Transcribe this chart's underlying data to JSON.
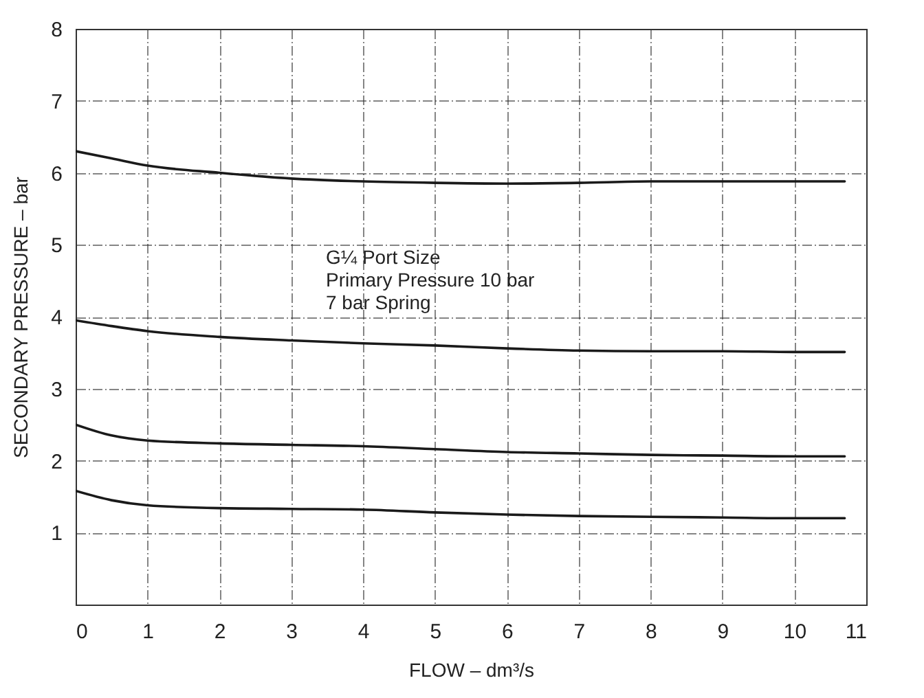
{
  "chart_data": {
    "type": "line",
    "xlabel": "FLOW – dm³/s",
    "ylabel": "SECONDARY PRESSURE – bar",
    "annotations": [
      "G¼ Port Size",
      "Primary Pressure 10 bar",
      "7 bar Spring"
    ],
    "x": [
      0,
      0.5,
      1,
      2,
      3,
      4,
      5,
      6,
      7,
      8,
      9,
      10,
      10.7
    ],
    "series": [
      {
        "color": "#1a1a1a",
        "values": [
          6.3,
          6.2,
          6.1,
          6.0,
          5.92,
          5.88,
          5.86,
          5.85,
          5.86,
          5.88,
          5.88,
          5.88,
          5.88
        ]
      },
      {
        "color": "#1a1a1a",
        "values": [
          3.95,
          3.87,
          3.8,
          3.72,
          3.67,
          3.63,
          3.6,
          3.56,
          3.53,
          3.52,
          3.52,
          3.51,
          3.51
        ]
      },
      {
        "color": "#1a1a1a",
        "values": [
          2.5,
          2.35,
          2.28,
          2.24,
          2.22,
          2.2,
          2.16,
          2.12,
          2.1,
          2.08,
          2.07,
          2.06,
          2.06
        ]
      },
      {
        "color": "#1a1a1a",
        "values": [
          1.58,
          1.45,
          1.38,
          1.34,
          1.33,
          1.32,
          1.28,
          1.25,
          1.23,
          1.22,
          1.21,
          1.2,
          1.2
        ]
      }
    ],
    "xlim": [
      0,
      11
    ],
    "xticks": [
      0,
      1,
      2,
      3,
      4,
      5,
      6,
      7,
      8,
      9,
      10,
      11
    ],
    "ylim": [
      0,
      8
    ],
    "yticks": [
      1,
      2,
      3,
      4,
      5,
      6,
      7,
      8
    ],
    "grid": true,
    "marker": "none",
    "line_style": "solid"
  }
}
